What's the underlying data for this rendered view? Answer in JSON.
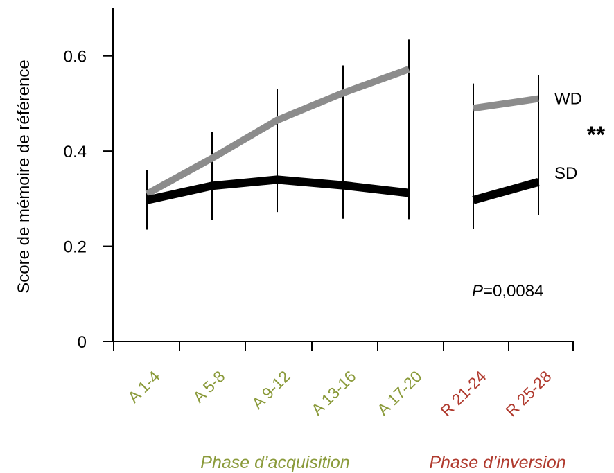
{
  "chart_data": {
    "type": "line",
    "ylabel": "Score de mémoire de référence",
    "ylim": [
      0,
      0.7
    ],
    "yticks": [
      {
        "value": 0,
        "label": "0"
      },
      {
        "value": 0.2,
        "label": "0.2"
      },
      {
        "value": 0.4,
        "label": "0.4"
      },
      {
        "value": 0.6,
        "label": "0.6"
      }
    ],
    "categories": [
      "A 1-4",
      "A 5-8",
      "A 9-12",
      "A 13-16",
      "A 17-20",
      "R 21-24",
      "R 25-28"
    ],
    "category_colors": [
      "#8a9a3a",
      "#8a9a3a",
      "#8a9a3a",
      "#8a9a3a",
      "#8a9a3a",
      "#b03a2e",
      "#b03a2e"
    ],
    "segments": [
      [
        0,
        1,
        2,
        3,
        4
      ],
      [
        5,
        6
      ]
    ],
    "series": [
      {
        "name": "WD",
        "color": "#8c8c8c",
        "values": [
          0.31,
          0.385,
          0.465,
          0.522,
          0.572,
          0.49,
          0.51
        ],
        "err": [
          0.05,
          0.055,
          0.065,
          0.058,
          0.062,
          0.052,
          0.05
        ]
      },
      {
        "name": "SD",
        "color": "#000000",
        "values": [
          0.297,
          0.327,
          0.34,
          0.328,
          0.312,
          0.297,
          0.335
        ],
        "err": [
          0.062,
          0.072,
          0.068,
          0.07,
          0.055,
          0.06,
          0.07
        ]
      }
    ],
    "significance": "**",
    "p_value": {
      "prefix": "P",
      "text": "=0,0084"
    },
    "phases": [
      {
        "label": "Phase d’acquisition",
        "color": "#8a9a3a"
      },
      {
        "label": "Phase d’inversion",
        "color": "#b03a2e"
      }
    ]
  }
}
